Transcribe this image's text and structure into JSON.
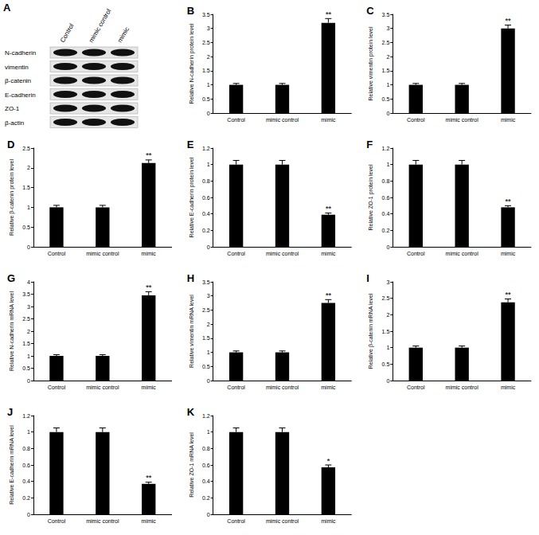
{
  "blot": {
    "title": "A",
    "lanes": [
      "Control",
      "mimic control",
      "mimic"
    ],
    "rows": [
      "N-cadherin",
      "vimentin",
      "β-catenin",
      "E-cadherin",
      "ZO-1",
      "β-actin"
    ]
  },
  "chart_data": [
    {
      "type": "bar",
      "title": "B",
      "y_label": "Relative N-cadherin protein level",
      "categories": [
        "Control",
        "mimic control",
        "mimic"
      ],
      "values": [
        1,
        1,
        3.2
      ],
      "errors": [
        0.05,
        0.05,
        0.15
      ],
      "color": "#000000",
      "ylim": [
        0,
        3.5
      ],
      "yticks": [
        0,
        0.5,
        1,
        1.5,
        2,
        2.5,
        3,
        3.5
      ],
      "grid": false,
      "annotations": [
        {
          "category": "mimic",
          "text": "**"
        }
      ]
    },
    {
      "type": "bar",
      "title": "C",
      "y_label": "Relative vimentin protein level",
      "categories": [
        "Control",
        "mimic control",
        "mimic"
      ],
      "values": [
        1,
        1,
        3.0
      ],
      "errors": [
        0.05,
        0.05,
        0.12
      ],
      "color": "#000000",
      "ylim": [
        0,
        3.5
      ],
      "yticks": [
        0,
        0.5,
        1,
        1.5,
        2,
        2.5,
        3,
        3.5
      ],
      "grid": false,
      "annotations": [
        {
          "category": "mimic",
          "text": "**"
        }
      ]
    },
    {
      "type": "bar",
      "title": "D",
      "y_label": "Relative β-catenin protein level",
      "categories": [
        "Control",
        "mimic control",
        "mimic"
      ],
      "values": [
        1,
        1,
        2.12
      ],
      "errors": [
        0.05,
        0.05,
        0.08
      ],
      "color": "#000000",
      "ylim": [
        0,
        2.5
      ],
      "yticks": [
        0,
        0.5,
        1,
        1.5,
        2,
        2.5
      ],
      "grid": false,
      "annotations": [
        {
          "category": "mimic",
          "text": "**"
        }
      ]
    },
    {
      "type": "bar",
      "title": "E",
      "y_label": "Relative E-cadherin protein level",
      "categories": [
        "Control",
        "mimic control",
        "mimic"
      ],
      "values": [
        1,
        1,
        0.39
      ],
      "errors": [
        0.05,
        0.05,
        0.02
      ],
      "color": "#000000",
      "ylim": [
        0,
        1.2
      ],
      "yticks": [
        0,
        0.2,
        0.4,
        0.6,
        0.8,
        1,
        1.2
      ],
      "grid": false,
      "annotations": [
        {
          "category": "mimic",
          "text": "**"
        }
      ]
    },
    {
      "type": "bar",
      "title": "F",
      "y_label": "Relative ZO-1 protein level",
      "categories": [
        "Control",
        "mimic control",
        "mimic"
      ],
      "values": [
        1,
        1,
        0.48
      ],
      "errors": [
        0.05,
        0.05,
        0.02
      ],
      "color": "#000000",
      "ylim": [
        0,
        1.2
      ],
      "yticks": [
        0,
        0.2,
        0.4,
        0.6,
        0.8,
        1,
        1.2
      ],
      "grid": false,
      "annotations": [
        {
          "category": "mimic",
          "text": "**"
        }
      ]
    },
    {
      "type": "bar",
      "title": "G",
      "y_label": "Relative N-cadherin mRNA level",
      "categories": [
        "Control",
        "mimic control",
        "mimic"
      ],
      "values": [
        1,
        1,
        3.45
      ],
      "errors": [
        0.05,
        0.05,
        0.15
      ],
      "color": "#000000",
      "ylim": [
        0,
        4
      ],
      "yticks": [
        0,
        0.5,
        1,
        1.5,
        2,
        2.5,
        3,
        3.5,
        4
      ],
      "grid": false,
      "annotations": [
        {
          "category": "mimic",
          "text": "**"
        }
      ]
    },
    {
      "type": "bar",
      "title": "H",
      "y_label": "Relative vimentin mRNA level",
      "categories": [
        "Control",
        "mimic control",
        "mimic"
      ],
      "values": [
        1,
        1,
        2.75
      ],
      "errors": [
        0.05,
        0.05,
        0.12
      ],
      "color": "#000000",
      "ylim": [
        0,
        3.5
      ],
      "yticks": [
        0,
        0.5,
        1,
        1.5,
        2,
        2.5,
        3,
        3.5
      ],
      "grid": false,
      "annotations": [
        {
          "category": "mimic",
          "text": "**"
        }
      ]
    },
    {
      "type": "bar",
      "title": "I",
      "y_label": "Relative β-catenin mRNA level",
      "categories": [
        "Control",
        "mimic control",
        "mimic"
      ],
      "values": [
        1,
        1,
        2.38
      ],
      "errors": [
        0.05,
        0.05,
        0.1
      ],
      "color": "#000000",
      "ylim": [
        0,
        3
      ],
      "yticks": [
        0,
        0.5,
        1,
        1.5,
        2,
        2.5,
        3
      ],
      "grid": false,
      "annotations": [
        {
          "category": "mimic",
          "text": "**"
        }
      ]
    },
    {
      "type": "bar",
      "title": "J",
      "y_label": "Relative E-cadherin mRNA level",
      "categories": [
        "Control",
        "mimic control",
        "mimic"
      ],
      "values": [
        1,
        1,
        0.37
      ],
      "errors": [
        0.05,
        0.05,
        0.02
      ],
      "color": "#000000",
      "ylim": [
        0,
        1.2
      ],
      "yticks": [
        0,
        0.2,
        0.4,
        0.6,
        0.8,
        1,
        1.2
      ],
      "grid": false,
      "annotations": [
        {
          "category": "mimic",
          "text": "**"
        }
      ]
    },
    {
      "type": "bar",
      "title": "K",
      "y_label": "Relative ZO-1 mRNA level",
      "categories": [
        "Control",
        "mimic control",
        "mimic"
      ],
      "values": [
        1,
        1,
        0.57
      ],
      "errors": [
        0.05,
        0.05,
        0.03
      ],
      "color": "#000000",
      "ylim": [
        0,
        1.2
      ],
      "yticks": [
        0,
        0.2,
        0.4,
        0.6,
        0.8,
        1,
        1.2
      ],
      "grid": false,
      "annotations": [
        {
          "category": "mimic",
          "text": "*"
        }
      ]
    }
  ]
}
